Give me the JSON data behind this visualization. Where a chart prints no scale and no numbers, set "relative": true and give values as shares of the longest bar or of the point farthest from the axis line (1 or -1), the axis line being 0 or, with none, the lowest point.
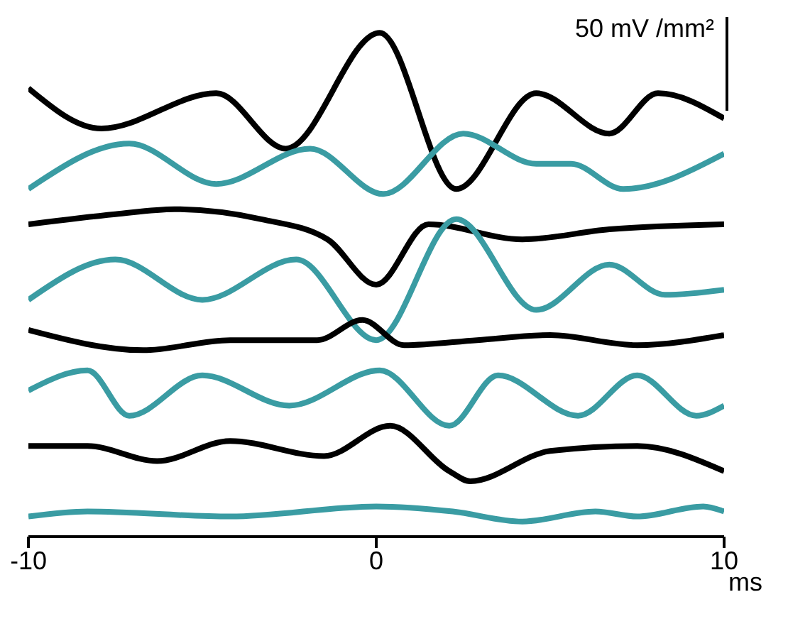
{
  "chart_data": {
    "type": "line",
    "relative": true,
    "xlabel": "ms",
    "xlim": [
      -10,
      10
    ],
    "xticks": [
      -10,
      0,
      10
    ],
    "grid": false,
    "legend": false,
    "marker": "none",
    "line_style": "solid",
    "annotations": [
      "50 mV /mm²"
    ],
    "series": [
      {
        "color": "#000000",
        "x": [
          -10,
          -7.9,
          -4.6,
          -2.6,
          0.1,
          2.3,
          4.6,
          6.7,
          8.1,
          10
        ],
        "values": [
          0.89,
          0.81,
          0.88,
          0.77,
          1.0,
          0.69,
          0.88,
          0.8,
          0.88,
          0.83
        ]
      },
      {
        "color": "#3a9ca3",
        "x": [
          -10,
          -7.1,
          -4.6,
          -1.9,
          0.2,
          2.5,
          4.6,
          5.6,
          7.1,
          10
        ],
        "values": [
          0.69,
          0.78,
          0.7,
          0.77,
          0.68,
          0.8,
          0.74,
          0.74,
          0.69,
          0.76
        ]
      },
      {
        "color": "#000000",
        "x": [
          -10,
          -7.5,
          -5.8,
          -3.3,
          -1.4,
          0,
          1.5,
          4.2,
          6.7,
          10
        ],
        "values": [
          0.62,
          0.64,
          0.65,
          0.63,
          0.59,
          0.5,
          0.62,
          0.59,
          0.61,
          0.62
        ]
      },
      {
        "color": "#3a9ca3",
        "x": [
          -10,
          -7.5,
          -5,
          -2.3,
          0,
          2.3,
          4.6,
          6.7,
          8.3,
          10
        ],
        "values": [
          0.47,
          0.55,
          0.47,
          0.55,
          0.39,
          0.63,
          0.45,
          0.54,
          0.48,
          0.49
        ]
      },
      {
        "color": "#000000",
        "x": [
          -10,
          -6.7,
          -4.2,
          -1.7,
          -0.4,
          0.8,
          2.9,
          5,
          7.5,
          10
        ],
        "values": [
          0.41,
          0.37,
          0.39,
          0.39,
          0.43,
          0.38,
          0.39,
          0.4,
          0.38,
          0.4
        ]
      },
      {
        "color": "#3a9ca3",
        "x": [
          -10,
          -8.3,
          -7.1,
          -5,
          -2.5,
          0.1,
          2.1,
          3.5,
          5.8,
          7.5,
          9.2,
          10
        ],
        "values": [
          0.29,
          0.33,
          0.24,
          0.32,
          0.26,
          0.33,
          0.22,
          0.32,
          0.24,
          0.32,
          0.24,
          0.26
        ]
      },
      {
        "color": "#000000",
        "x": [
          -10,
          -8.3,
          -6.3,
          -4.2,
          -1.5,
          0.4,
          2.1,
          2.7,
          5,
          7.5,
          10
        ],
        "values": [
          0.18,
          0.18,
          0.15,
          0.19,
          0.16,
          0.22,
          0.13,
          0.11,
          0.17,
          0.18,
          0.13
        ]
      },
      {
        "color": "#3a9ca3",
        "x": [
          -10,
          -8.3,
          -4.2,
          0,
          2.2,
          4.2,
          6.3,
          7.5,
          9.4,
          10
        ],
        "values": [
          0.04,
          0.05,
          0.04,
          0.06,
          0.05,
          0.03,
          0.05,
          0.04,
          0.06,
          0.05
        ]
      }
    ]
  }
}
